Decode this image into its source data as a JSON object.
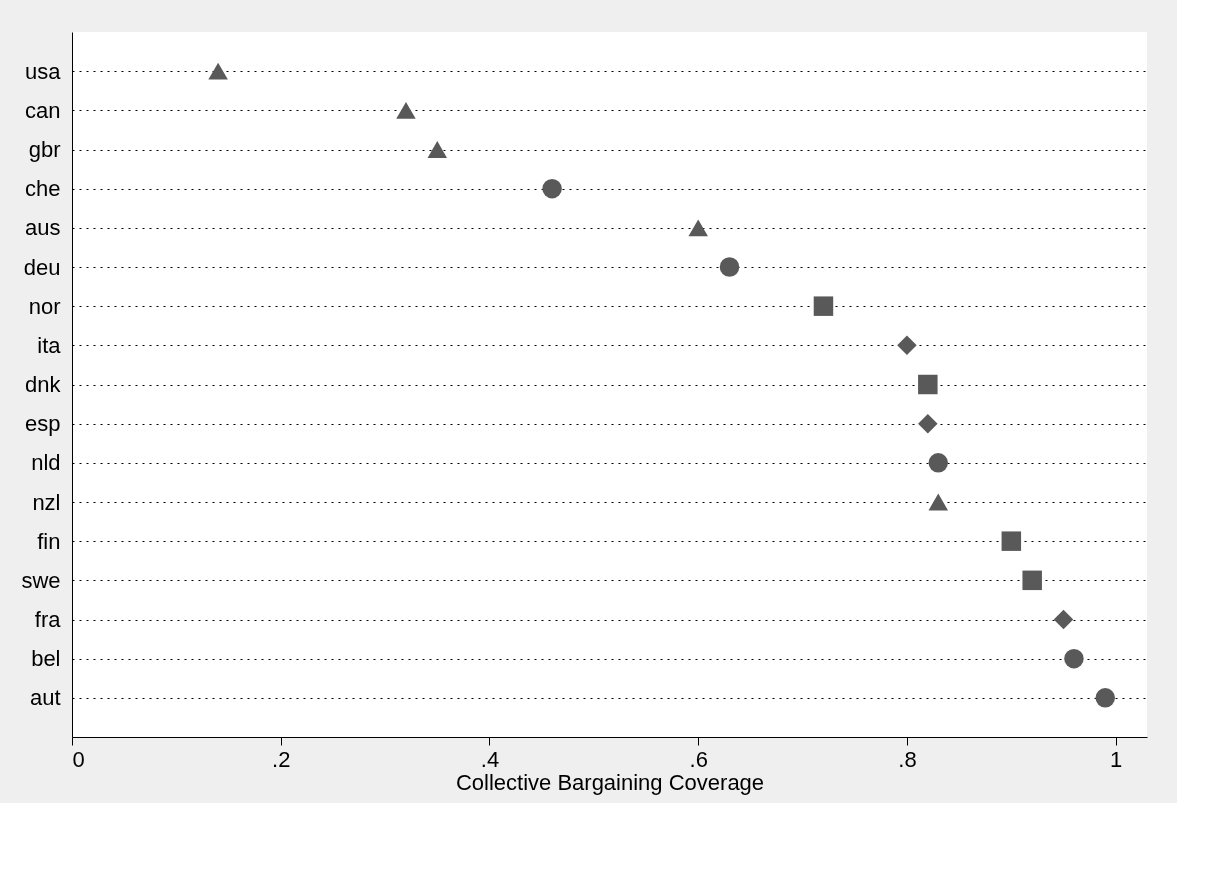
{
  "chart_data": {
    "type": "scatter",
    "xlabel": "Collective Bargaining Coverage",
    "categories": [
      "usa",
      "can",
      "gbr",
      "che",
      "aus",
      "deu",
      "nor",
      "ita",
      "dnk",
      "esp",
      "nld",
      "nzl",
      "fin",
      "swe",
      "fra",
      "bel",
      "aut"
    ],
    "orientation": "horizontal",
    "series": [
      {
        "color": "#595959",
        "marker": "triangle",
        "values": [
          0.14,
          0.32,
          0.35,
          null,
          0.6,
          null,
          null,
          null,
          null,
          null,
          null,
          0.83,
          null,
          null,
          null,
          null,
          null
        ]
      },
      {
        "color": "#595959",
        "marker": "circle",
        "values": [
          null,
          null,
          null,
          0.46,
          null,
          0.63,
          null,
          null,
          null,
          null,
          0.83,
          null,
          null,
          null,
          null,
          0.96,
          0.99
        ]
      },
      {
        "color": "#595959",
        "marker": "square",
        "values": [
          null,
          null,
          null,
          null,
          null,
          null,
          0.72,
          null,
          0.82,
          null,
          null,
          null,
          0.9,
          0.92,
          null,
          null,
          null
        ]
      },
      {
        "color": "#595959",
        "marker": "diamond",
        "values": [
          null,
          null,
          null,
          null,
          null,
          null,
          null,
          0.8,
          null,
          0.82,
          null,
          null,
          null,
          null,
          0.95,
          null,
          null
        ]
      }
    ],
    "xlim": [
      0,
      1.03
    ],
    "xticks": [
      0,
      {
        "value": 0.2,
        "label": ".2"
      },
      {
        "value": 0.4,
        "label": ".4"
      },
      {
        "value": 0.6,
        "label": ".6"
      },
      {
        "value": 0.8,
        "label": ".8"
      },
      1
    ],
    "grid": "y"
  }
}
